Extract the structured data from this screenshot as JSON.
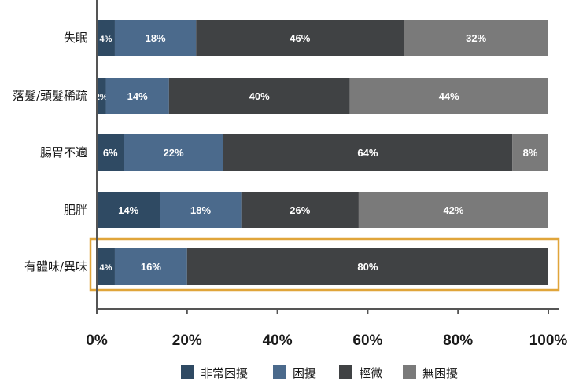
{
  "chart_data": {
    "type": "bar",
    "orientation": "horizontal",
    "stacked": true,
    "categories": [
      "失眠",
      "落髮/頭髮稀疏",
      "腸胃不適",
      "肥胖",
      "有體味/異味"
    ],
    "series": [
      {
        "name": "非常困擾",
        "color": "#2f4a63",
        "values": [
          4,
          2,
          6,
          14,
          4
        ]
      },
      {
        "name": "困擾",
        "color": "#4b6a8c",
        "values": [
          18,
          14,
          22,
          18,
          16
        ]
      },
      {
        "name": "輕微",
        "color": "#404244",
        "values": [
          46,
          40,
          64,
          26,
          80
        ]
      },
      {
        "name": "無困擾",
        "color": "#7a7a7a",
        "values": [
          32,
          44,
          8,
          42,
          0
        ]
      }
    ],
    "data_labels": [
      [
        "4%",
        "18%",
        "46%",
        "32%"
      ],
      [
        "2%",
        "14%",
        "40%",
        "44%"
      ],
      [
        "6%",
        "22%",
        "64%",
        "8%"
      ],
      [
        "14%",
        "18%",
        "26%",
        "42%"
      ],
      [
        "4%",
        "16%",
        "80%",
        ""
      ]
    ],
    "xlim": [
      0,
      100
    ],
    "x_ticks": [
      0,
      20,
      40,
      60,
      80,
      100
    ],
    "x_tick_labels": [
      "0%",
      "20%",
      "40%",
      "60%",
      "80%",
      "100%"
    ],
    "legend_position": "bottom",
    "highlighted_category": "有體味/異味",
    "highlight_color": "#e0a53a",
    "axis_color": "#555555"
  }
}
